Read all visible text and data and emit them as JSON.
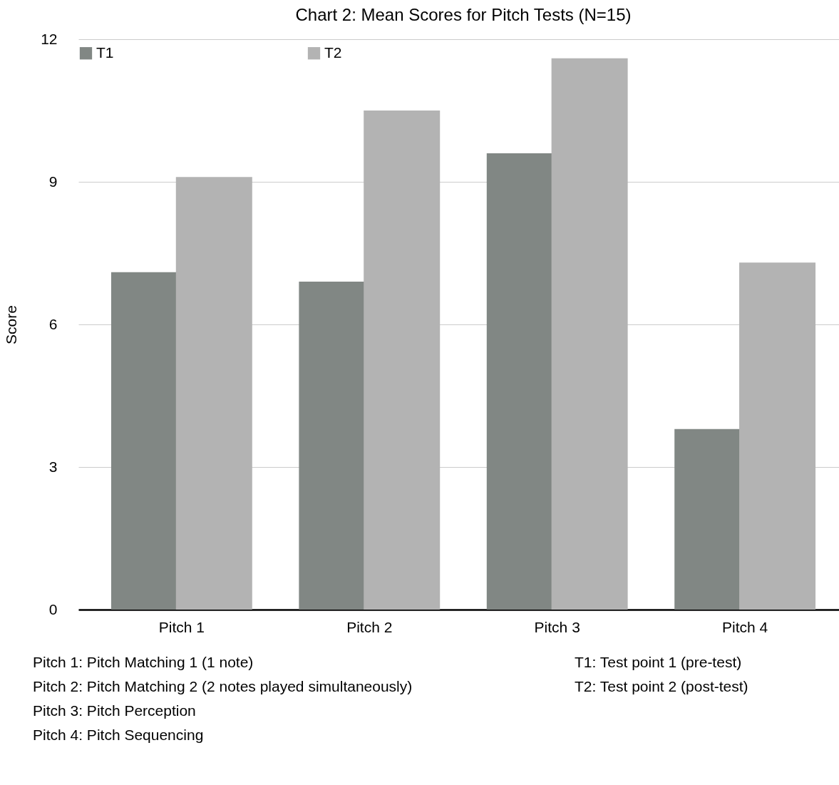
{
  "chart_data": {
    "type": "bar",
    "title": "Chart 2: Mean Scores for Pitch Tests (N=15)",
    "ylabel": "Score",
    "categories": [
      "Pitch 1",
      "Pitch 2",
      "Pitch 3",
      "Pitch 4"
    ],
    "series": [
      {
        "name": "T1",
        "color": "#818784",
        "values": [
          7.1,
          6.9,
          9.6,
          3.8
        ]
      },
      {
        "name": "T2",
        "color": "#b3b3b3",
        "values": [
          9.1,
          10.5,
          11.6,
          7.3
        ]
      }
    ],
    "ylim": [
      0,
      12
    ],
    "yticks": [
      0,
      3,
      6,
      9,
      12
    ],
    "grid": "y",
    "legend": "top",
    "annotations": [
      "Pitch 1: Pitch Matching 1 (1 note)",
      "Pitch 2: Pitch Matching 2 (2 notes played simultaneously)",
      "Pitch 3: Pitch Perception",
      "Pitch 4: Pitch Sequencing",
      "T1: Test point 1 (pre-test)",
      "T2: Test point 2 (post-test)"
    ]
  }
}
